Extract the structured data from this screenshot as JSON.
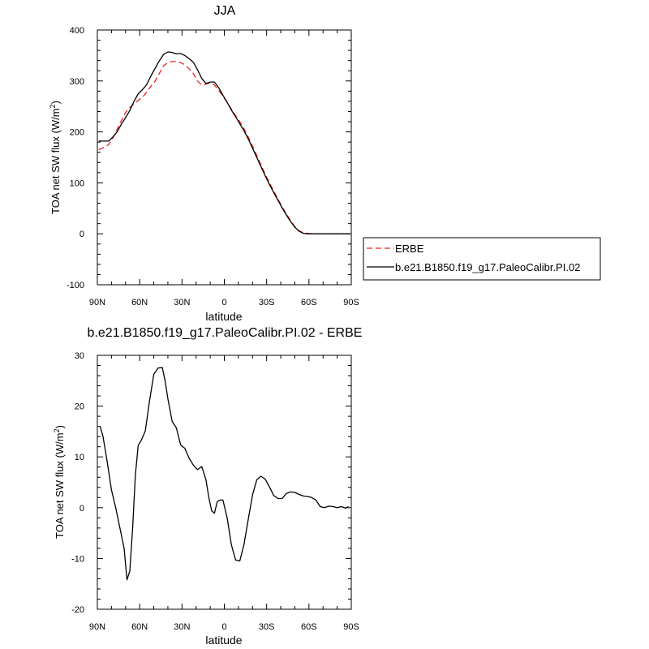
{
  "chart_data": [
    {
      "type": "line",
      "title": "JJA",
      "xlabel": "latitude",
      "ylabel": "TOA net SW flux (W/m",
      "ylabel_sup": "2",
      "ylabel_end": ")",
      "xlim": [
        90,
        -90
      ],
      "ylim": [
        -100,
        400
      ],
      "xticks": [
        90,
        60,
        30,
        0,
        -30,
        -60,
        -90
      ],
      "xtick_labels": [
        "90N",
        "60N",
        "30N",
        "0",
        "30S",
        "60S",
        "90S"
      ],
      "yticks": [
        -100,
        0,
        100,
        200,
        300,
        400
      ],
      "ytick_labels": [
        "-100",
        "0",
        "100",
        "200",
        "300",
        "400"
      ],
      "legend_position": "right",
      "series": [
        {
          "name": "ERBE",
          "color": "#e8231e",
          "style": "dashed",
          "x": [
            89,
            85,
            82,
            79,
            76,
            73,
            70,
            67,
            64,
            61,
            58,
            55,
            52,
            49,
            46,
            43,
            40,
            37,
            34,
            31,
            28,
            25,
            22,
            19,
            16,
            13,
            10,
            7,
            4,
            1,
            -2,
            -5,
            -8,
            -11,
            -14,
            -17,
            -20,
            -23,
            -26,
            -29,
            -32,
            -35,
            -38,
            -41,
            -44,
            -47,
            -50,
            -53,
            -56,
            -59,
            -62,
            -65,
            -68,
            -71,
            -74,
            -77,
            -80,
            -83,
            -86,
            -89
          ],
          "y": [
            165,
            170,
            175,
            188,
            205,
            222,
            238,
            248,
            255,
            262,
            268,
            278,
            290,
            300,
            315,
            330,
            336,
            338,
            338,
            336,
            332,
            324,
            315,
            300,
            292,
            294,
            296,
            292,
            282,
            270,
            258,
            245,
            232,
            220,
            206,
            190,
            172,
            154,
            135,
            117,
            100,
            84,
            68,
            53,
            39,
            26,
            14,
            6,
            2,
            1,
            0,
            0,
            0,
            0,
            0,
            0,
            0,
            0,
            0,
            0
          ]
        },
        {
          "name": "b.e21.B1850.f19_g17.PaleoCalibr.PI.02",
          "color": "#000000",
          "style": "solid",
          "x": [
            89,
            85,
            82,
            79,
            76,
            73,
            70,
            67,
            64,
            61,
            58,
            55,
            52,
            49,
            46,
            43,
            40,
            37,
            34,
            31,
            28,
            25,
            22,
            19,
            16,
            13,
            10,
            7,
            4,
            1,
            -2,
            -5,
            -8,
            -11,
            -14,
            -17,
            -20,
            -23,
            -26,
            -29,
            -32,
            -35,
            -38,
            -41,
            -44,
            -47,
            -50,
            -53,
            -56,
            -59,
            -62,
            -65,
            -68,
            -71,
            -74,
            -77,
            -80,
            -83,
            -86,
            -89
          ],
          "y": [
            182,
            182,
            182,
            190,
            200,
            215,
            228,
            242,
            260,
            275,
            283,
            293,
            310,
            325,
            340,
            352,
            357,
            356,
            353,
            354,
            350,
            344,
            337,
            322,
            305,
            295,
            298,
            298,
            287,
            272,
            258,
            243,
            230,
            216,
            202,
            186,
            168,
            150,
            132,
            114,
            97,
            81,
            66,
            51,
            37,
            24,
            13,
            5,
            1,
            0,
            0,
            0,
            0,
            0,
            0,
            0,
            0,
            0,
            0,
            0
          ]
        }
      ]
    },
    {
      "type": "line",
      "title": "b.e21.B1850.f19_g17.PaleoCalibr.PI.02 - ERBE",
      "xlabel": "latitude",
      "ylabel": "TOA net SW flux (W/m",
      "ylabel_sup": "2",
      "ylabel_end": ")",
      "xlim": [
        90,
        -90
      ],
      "ylim": [
        -20,
        30
      ],
      "xticks": [
        90,
        60,
        30,
        0,
        -30,
        -60,
        -90
      ],
      "xtick_labels": [
        "90N",
        "60N",
        "30N",
        "0",
        "30S",
        "60S",
        "90S"
      ],
      "yticks": [
        -20,
        -10,
        0,
        10,
        20,
        30
      ],
      "ytick_labels": [
        "-20",
        "-10",
        "0",
        "10",
        "20",
        "30"
      ],
      "series": [
        {
          "color": "#000000",
          "style": "solid",
          "x": [
            88,
            86,
            83,
            80,
            77,
            74,
            71,
            69,
            67,
            65,
            63,
            61,
            59,
            56,
            53,
            50,
            47,
            44,
            42,
            40,
            37,
            34,
            31,
            28,
            25,
            22,
            19,
            16,
            13,
            11,
            9,
            7,
            5,
            3,
            1,
            -2,
            -5,
            -8,
            -11,
            -14,
            -17,
            -20,
            -23,
            -26,
            -29,
            -32,
            -35,
            -38,
            -41,
            -44,
            -47,
            -50,
            -53,
            -56,
            -59,
            -62,
            -65,
            -68,
            -71,
            -74,
            -77,
            -80,
            -83,
            -86,
            -88
          ],
          "y": [
            16,
            14,
            9,
            3.5,
            0,
            -4,
            -8,
            -14.2,
            -12.5,
            -4,
            6.5,
            12.3,
            13.2,
            15.1,
            21,
            26.3,
            27.5,
            27.6,
            25,
            21.5,
            17,
            15.7,
            12.4,
            11.7,
            9.8,
            8.4,
            7.5,
            8.1,
            5.5,
            2,
            -0.6,
            -1.1,
            1.2,
            1.5,
            1.5,
            -2,
            -7.3,
            -10.3,
            -10.5,
            -7.2,
            -2.2,
            2.5,
            5.5,
            6.2,
            5.6,
            4.1,
            2.4,
            1.8,
            1.8,
            2.8,
            3.1,
            3,
            2.6,
            2.3,
            2.2,
            2,
            1.5,
            0.2,
            0,
            0.3,
            0.2,
            0,
            0.2,
            -0.1,
            0.2
          ]
        }
      ]
    }
  ]
}
